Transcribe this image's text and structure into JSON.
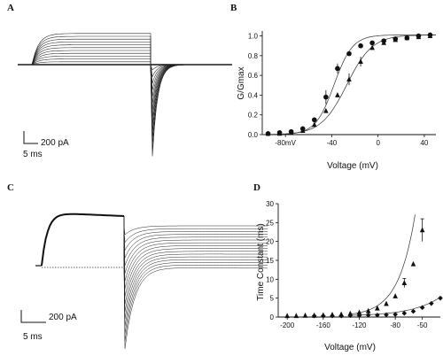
{
  "panels": {
    "A": {
      "label": "A",
      "scale_current": "200 pA",
      "scale_time": "5 ms"
    },
    "B": {
      "label": "B"
    },
    "C": {
      "label": "C",
      "scale_current": "200 pA",
      "scale_time": "5 ms"
    },
    "D": {
      "label": "D"
    }
  },
  "chart_data": [
    {
      "panel": "A",
      "type": "line",
      "description_kind": "current traces",
      "n_traces": 14,
      "title": "",
      "xlabel": "",
      "ylabel": ""
    },
    {
      "panel": "B",
      "type": "scatter",
      "title": "",
      "xlabel": "Voltage (mV)",
      "ylabel": "G/Gmax",
      "xlim": [
        -100,
        50
      ],
      "ylim": [
        0,
        1.05
      ],
      "xticks": [
        -80,
        -40,
        0,
        40
      ],
      "xtick_labels": [
        "-80mV",
        "-40",
        "0",
        "40"
      ],
      "yticks": [
        0.0,
        0.2,
        0.4,
        0.6,
        0.8,
        1.0
      ],
      "ytick_labels": [
        "0.0",
        "0.2",
        "0.4",
        "0.6",
        "0.8",
        "1.0"
      ],
      "grid": false,
      "series": [
        {
          "marker": "circle",
          "x": [
            -95,
            -85,
            -75,
            -65,
            -55,
            -45,
            -35,
            -25,
            -15,
            -5,
            5,
            15,
            25,
            35,
            45
          ],
          "y": [
            0.01,
            0.02,
            0.03,
            0.06,
            0.15,
            0.38,
            0.67,
            0.82,
            0.9,
            0.93,
            0.95,
            0.97,
            0.98,
            1.0,
            1.01
          ]
        },
        {
          "marker": "triangle",
          "x": [
            -95,
            -85,
            -75,
            -65,
            -55,
            -45,
            -35,
            -25,
            -15,
            -5,
            5,
            15,
            25,
            35,
            45
          ],
          "y": [
            0.01,
            0.01,
            0.02,
            0.04,
            0.1,
            0.24,
            0.4,
            0.56,
            0.74,
            0.88,
            0.93,
            0.96,
            0.98,
            0.99,
            1.0
          ]
        }
      ]
    },
    {
      "panel": "C",
      "type": "line",
      "description_kind": "current traces",
      "n_traces": 16,
      "title": "",
      "xlabel": "",
      "ylabel": ""
    },
    {
      "panel": "D",
      "type": "scatter",
      "title": "",
      "xlabel": "Voltage (mV)",
      "ylabel": "Time Constant (ms)",
      "xlim": [
        -210,
        -30
      ],
      "ylim": [
        0,
        30
      ],
      "xticks": [
        -200,
        -160,
        -120,
        -80,
        -50
      ],
      "xtick_labels": [
        "-200",
        "-160",
        "-120",
        "-80",
        "-50"
      ],
      "yticks": [
        0,
        5,
        10,
        15,
        20,
        25,
        30
      ],
      "ytick_labels": [
        "0",
        "5",
        "10",
        "15",
        "20",
        "25",
        "30"
      ],
      "grid": false,
      "series": [
        {
          "marker": "triangle",
          "x": [
            -200,
            -190,
            -180,
            -170,
            -160,
            -150,
            -140,
            -130,
            -120,
            -110,
            -100,
            -90,
            -80,
            -70,
            -60,
            -50
          ],
          "y": [
            0.3,
            0.3,
            0.4,
            0.4,
            0.5,
            0.6,
            0.7,
            0.9,
            1.2,
            1.6,
            2.3,
            3.5,
            5.5,
            9.0,
            14.0,
            23.0
          ]
        },
        {
          "marker": "diamond",
          "x": [
            -170,
            -160,
            -150,
            -140,
            -130,
            -120,
            -110,
            -100,
            -90,
            -80,
            -70,
            -60,
            -50,
            -40,
            -30
          ],
          "y": [
            0.3,
            0.3,
            0.3,
            0.3,
            0.4,
            0.4,
            0.5,
            0.5,
            0.6,
            0.7,
            1.0,
            1.5,
            2.5,
            3.6,
            5.0
          ]
        }
      ]
    }
  ]
}
